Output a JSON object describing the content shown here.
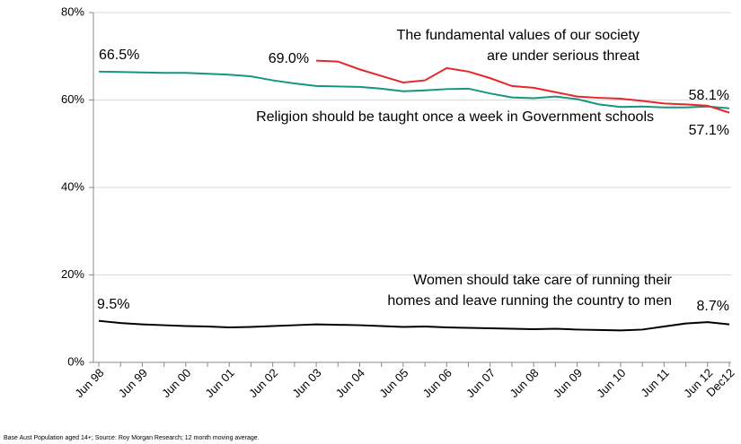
{
  "chart_data": {
    "type": "line",
    "footnote": "Base Aust Population aged 14+; Source: Roy Morgan Research; 12 month moving average.",
    "categories": [
      "Jun 98",
      null,
      "Jun 99",
      null,
      "Jun 00",
      null,
      "Jun 01",
      null,
      "Jun 02",
      null,
      "Jun 03",
      null,
      "Jun 04",
      null,
      "Jun 05",
      null,
      "Jun 06",
      null,
      "Jun 07",
      null,
      "Jun 08",
      null,
      "Jun 09",
      null,
      "Jun 10",
      null,
      "Jun 11",
      null,
      "Jun 12",
      "Dec12"
    ],
    "ylim": [
      0,
      80
    ],
    "yticks": [
      {
        "value": 0,
        "label": "0%"
      },
      {
        "value": 20,
        "label": "20%"
      },
      {
        "value": 40,
        "label": "40%"
      },
      {
        "value": 60,
        "label": "60%"
      },
      {
        "value": 80,
        "label": "80%"
      }
    ],
    "grid": true,
    "series": [
      {
        "name": [
          "Religion should be taught once a week in Government schools"
        ],
        "color": "#17967f",
        "end_label_color": "#5b8ea6",
        "values": [
          66.5,
          66.4,
          66.3,
          66.2,
          66.2,
          66.0,
          65.8,
          65.4,
          64.5,
          63.8,
          63.2,
          63.1,
          63.0,
          62.6,
          62.0,
          62.2,
          62.5,
          62.6,
          61.5,
          60.6,
          60.4,
          60.8,
          60.2,
          59.0,
          58.4,
          58.5,
          58.3,
          58.3,
          58.5,
          58.1
        ],
        "value_labels": [
          "66.5%",
          null,
          null,
          null,
          null,
          null,
          null,
          null,
          null,
          null,
          null,
          null,
          null,
          null,
          null,
          null,
          null,
          null,
          null,
          null,
          null,
          null,
          null,
          null,
          null,
          null,
          null,
          null,
          null,
          "58.1%"
        ]
      },
      {
        "name": [
          "The fundamental values of our society",
          "are under serious threat"
        ],
        "color": "#e8262a",
        "values": [
          null,
          null,
          null,
          null,
          null,
          null,
          null,
          null,
          null,
          null,
          69.0,
          68.8,
          67.0,
          65.5,
          64.0,
          64.5,
          67.3,
          66.5,
          65.0,
          63.2,
          62.8,
          61.8,
          60.8,
          60.5,
          60.3,
          59.8,
          59.2,
          59.0,
          58.7,
          57.1
        ],
        "value_labels": [
          null,
          null,
          null,
          null,
          null,
          null,
          null,
          null,
          null,
          null,
          "69.0%",
          null,
          null,
          null,
          null,
          null,
          null,
          null,
          null,
          null,
          null,
          null,
          null,
          null,
          null,
          null,
          null,
          null,
          null,
          "57.1%"
        ]
      },
      {
        "name": [
          "Women should take care of running their",
          "homes and leave running the country to men"
        ],
        "color": "#000000",
        "values": [
          9.5,
          9.0,
          8.7,
          8.5,
          8.3,
          8.2,
          8.0,
          8.1,
          8.3,
          8.5,
          8.7,
          8.6,
          8.5,
          8.3,
          8.1,
          8.2,
          8.0,
          7.9,
          7.8,
          7.7,
          7.6,
          7.7,
          7.5,
          7.4,
          7.3,
          7.5,
          8.2,
          8.9,
          9.2,
          8.7
        ],
        "value_labels": [
          "9.5%",
          null,
          null,
          null,
          null,
          null,
          null,
          null,
          null,
          null,
          null,
          null,
          null,
          null,
          null,
          null,
          null,
          null,
          null,
          null,
          null,
          null,
          null,
          null,
          null,
          null,
          null,
          null,
          null,
          "8.7%"
        ]
      }
    ]
  }
}
